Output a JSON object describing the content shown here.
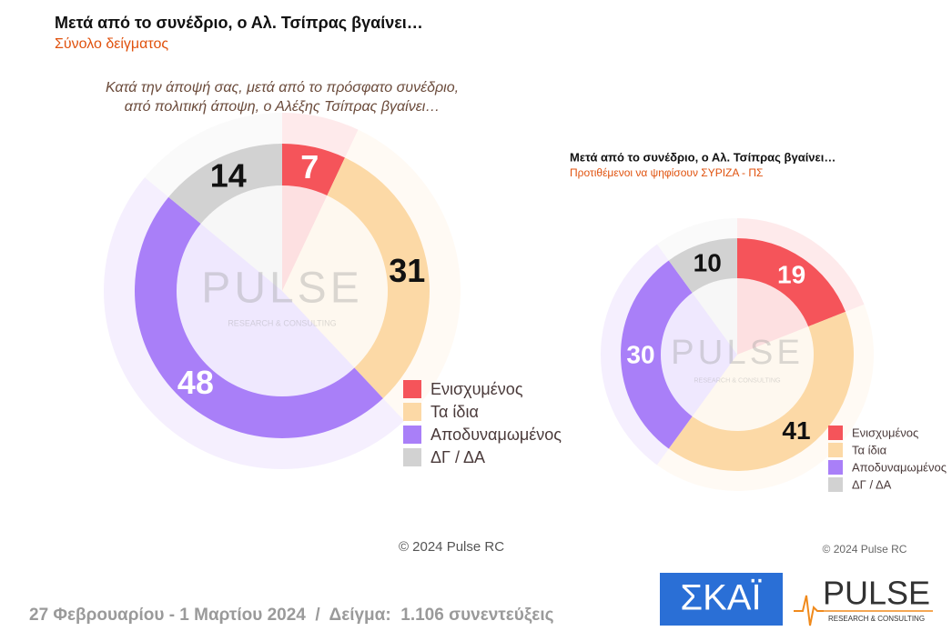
{
  "chart_data": [
    {
      "type": "donut",
      "title": "Μετά από το συνέδριο, ο Αλ. Τσίπρας βγαίνει…",
      "subtitle": "Σύνολο δείγματος",
      "question": [
        "Κατά την άποψή σας, μετά από το πρόσφατο συνέδριο,",
        "από πολιτική άποψη, ο Αλέξης Τσίπρας βγαίνει…"
      ],
      "categories": [
        "Ενισχυμένος",
        "Τα ίδια",
        "Αποδυναμωμένος",
        "ΔΓ / ΔΑ"
      ],
      "values": [
        7,
        31,
        48,
        14
      ],
      "colors": [
        "#f5545a",
        "#fcd9a6",
        "#a97ff8",
        "#d2d2d2"
      ],
      "copyright": "© 2024 Pulse RC"
    },
    {
      "type": "donut",
      "title": "Μετά από το συνέδριο, ο Αλ. Τσίπρας βγαίνει…",
      "subtitle": "Προτιθέμενοι να ψηφίσουν ΣΥΡΙΖΑ - ΠΣ",
      "categories": [
        "Ενισχυμένος",
        "Τα ίδια",
        "Αποδυναμωμένος",
        "ΔΓ / ΔΑ"
      ],
      "values": [
        19,
        41,
        30,
        10
      ],
      "colors": [
        "#f5545a",
        "#fcd9a6",
        "#a97ff8",
        "#d2d2d2"
      ],
      "copyright": "© 2024 Pulse RC"
    }
  ],
  "watermark": {
    "name": "PULSE",
    "tagline": "RESEARCH & CONSULTING"
  },
  "footer": "27 Φεβρουαρίου - 1 Μαρτίου 2024  /  Δείγμα:  1.106 συνεντεύξεις",
  "logos": {
    "channel": "ΣΚΑΪ",
    "pulse": "PULSE",
    "pulse_tagline": "RESEARCH & CONSULTING"
  }
}
